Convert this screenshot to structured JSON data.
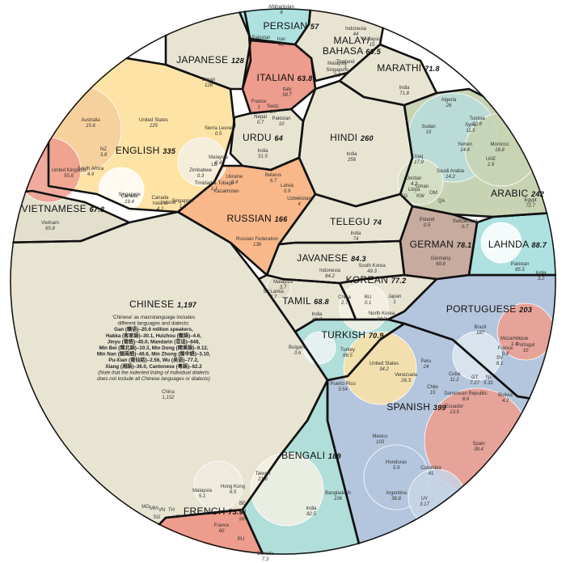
{
  "chart_data": {
    "type": "circle-voronoi-treemap",
    "title": "",
    "unit_note": "",
    "colors": {
      "asia": "#e8e4d2",
      "latin": "#b4c6dd",
      "germanic": "#fde3a5",
      "romance_red": "#ee9c8d",
      "slavic": "#f8b88a",
      "semitic_arabic": "#c8d3b3",
      "arabic_alt": "#b9dcdc",
      "iranian": "#ade2e0",
      "germanic_brown": "#c7ab9e",
      "turkic": "#b0ded9",
      "vietnamese": "#e2e0cd",
      "outline": "#111111"
    },
    "languages": [
      {
        "name": "CHINESE",
        "value": "1,197",
        "color": "asia"
      },
      {
        "name": "SPANISH",
        "value": "399",
        "color": "latin"
      },
      {
        "name": "ENGLISH",
        "value": "335",
        "color": "germanic"
      },
      {
        "name": "HINDI",
        "value": "260",
        "color": "asia"
      },
      {
        "name": "ARABIC",
        "value": "242",
        "color": "semitic_arabic"
      },
      {
        "name": "PORTUGUESE",
        "value": "203",
        "color": "latin"
      },
      {
        "name": "BENGALI",
        "value": "189",
        "color": "turkic"
      },
      {
        "name": "RUSSIAN",
        "value": "166",
        "color": "slavic"
      },
      {
        "name": "JAPANESE",
        "value": "128",
        "color": "asia"
      },
      {
        "name": "LAHNDA",
        "value": "88.7",
        "color": "iranian"
      },
      {
        "name": "JAVANESE",
        "value": "84.3",
        "color": "asia"
      },
      {
        "name": "GERMAN",
        "value": "78.1",
        "color": "germanic_brown"
      },
      {
        "name": "KOREAN",
        "value": "77.2",
        "color": "asia"
      },
      {
        "name": "FRENCH",
        "value": "75.9",
        "color": "romance_red"
      },
      {
        "name": "TELEGU",
        "value": "74",
        "color": "asia"
      },
      {
        "name": "MARATHI",
        "value": "71.8",
        "color": "asia"
      },
      {
        "name": "TURKISH",
        "value": "70.9",
        "color": "turkic"
      },
      {
        "name": "TAMIL",
        "value": "68.8",
        "color": "asia"
      },
      {
        "name": "VIETNAMESE",
        "value": "67.8",
        "color": "vietnamese"
      },
      {
        "name": "URDU",
        "value": "64",
        "color": "asia"
      },
      {
        "name": "ITALIAN",
        "value": "63.8",
        "color": "romance_red"
      },
      {
        "name": "MALAY/ BAHASA",
        "value": "60.5",
        "color": "asia"
      },
      {
        "name": "PERSIAN",
        "value": "57",
        "color": "iranian"
      }
    ],
    "countries": [
      {
        "label": "Afghanistan",
        "value": "8"
      },
      {
        "label": "Iran",
        "value": "46"
      },
      {
        "label": "Pakistan",
        "value": ""
      },
      {
        "label": "Indonesia",
        "value": "44"
      },
      {
        "label": "Malaysia",
        "value": "15"
      },
      {
        "label": "Thailand",
        "value": "1"
      },
      {
        "label": "Singapore",
        "value": "0.5"
      },
      {
        "label": "Japan",
        "value": "128"
      },
      {
        "label": "Italy",
        "value": "58.7"
      },
      {
        "label": "France",
        "value": "1"
      },
      {
        "label": "Switz.",
        "value": "0.7"
      },
      {
        "label": "India",
        "value": "71.8"
      },
      {
        "label": "Algeria",
        "value": "26"
      },
      {
        "label": "Tunisia",
        "value": "10.8"
      },
      {
        "label": "Syria",
        "value": "11.5"
      },
      {
        "label": "Sudan",
        "value": "15"
      },
      {
        "label": "Yemen",
        "value": "14.4"
      },
      {
        "label": "Morocco",
        "value": "18.8"
      },
      {
        "label": "Iraq",
        "value": "17.9"
      },
      {
        "label": "Saudi Arabia",
        "value": "14.2"
      },
      {
        "label": "UAE",
        "value": "2.9"
      },
      {
        "label": "Jordan",
        "value": "4.2"
      },
      {
        "label": "Egypt",
        "value": "72.7"
      },
      {
        "label": "Australia",
        "value": "15.6"
      },
      {
        "label": "NZ",
        "value": "3.8"
      },
      {
        "label": "United States",
        "value": "225"
      },
      {
        "label": "Sierra Leone",
        "value": "0.5"
      },
      {
        "label": "United Kingdom",
        "value": "55.6"
      },
      {
        "label": "South Africa",
        "value": "4.9"
      },
      {
        "label": "Canada",
        "value": "19.4"
      },
      {
        "label": "Ireland",
        "value": "4.2"
      },
      {
        "label": "Zimbabwe",
        "value": "0.3"
      },
      {
        "label": "Trinidad & Tobago",
        "value": "1.1"
      },
      {
        "label": "Singapore",
        "value": "1.1"
      },
      {
        "label": "Malaysia",
        "value": "0.4"
      },
      {
        "label": "Nepal",
        "value": "0.7"
      },
      {
        "label": "Pakistan",
        "value": "10"
      },
      {
        "label": "India",
        "value": "51.5"
      },
      {
        "label": "India",
        "value": "258"
      },
      {
        "label": "Ukraine",
        "value": "8.4"
      },
      {
        "label": "Belarus",
        "value": "6.7"
      },
      {
        "label": "Kazakhstan",
        "value": ""
      },
      {
        "label": "Latvia",
        "value": "0.9"
      },
      {
        "label": "Uzbekistan",
        "value": "4"
      },
      {
        "label": "Russian Federation",
        "value": "138"
      },
      {
        "label": "Vietnam",
        "value": "65.8"
      },
      {
        "label": "India",
        "value": "74"
      },
      {
        "label": "Poland",
        "value": "0.5"
      },
      {
        "label": "Switzerland",
        "value": "0.7"
      },
      {
        "label": "Germany",
        "value": "69.8"
      },
      {
        "label": "Pakistan",
        "value": "85.5"
      },
      {
        "label": "India",
        "value": "3.2"
      },
      {
        "label": "Indonesia",
        "value": "84.2"
      },
      {
        "label": "South Korea",
        "value": "49.3"
      },
      {
        "label": "China",
        "value": "2.7"
      },
      {
        "label": "RU",
        "value": "0.1"
      },
      {
        "label": "Japan",
        "value": "1"
      },
      {
        "label": "North Korea",
        "value": "24.2"
      },
      {
        "label": "Malaysia",
        "value": "3.7"
      },
      {
        "label": "Sri Lanka",
        "value": "3.7"
      },
      {
        "label": "India",
        "value": "60.7"
      },
      {
        "label": "Brazil",
        "value": "187"
      },
      {
        "label": "Mozambique",
        "value": "1.4"
      },
      {
        "label": "France",
        "value": "0.8"
      },
      {
        "label": "Portugal",
        "value": "10"
      },
      {
        "label": "Bulgaria",
        "value": "0.6"
      },
      {
        "label": "Turkey",
        "value": "66.5"
      },
      {
        "label": "United States",
        "value": "34.2"
      },
      {
        "label": "Puerto Rico",
        "value": "3.54"
      },
      {
        "label": "Peru",
        "value": "24"
      },
      {
        "label": "Venezuela",
        "value": "26.3"
      },
      {
        "label": "Chile",
        "value": "15"
      },
      {
        "label": "Cuba",
        "value": "11.2"
      },
      {
        "label": "GT",
        "value": "7.27"
      },
      {
        "label": "SV",
        "value": "6.1"
      },
      {
        "label": "Dominican Republic",
        "value": "8.6"
      },
      {
        "label": "NI",
        "value": "5.31"
      },
      {
        "label": "Ecuador",
        "value": "13.5"
      },
      {
        "label": "Bolivia",
        "value": "4.2"
      },
      {
        "label": "Mexico",
        "value": "103"
      },
      {
        "label": "Spain",
        "value": "38.4"
      },
      {
        "label": "Honduras",
        "value": "5.9"
      },
      {
        "label": "Colombia",
        "value": "41"
      },
      {
        "label": "Argentina",
        "value": "38.8"
      },
      {
        "label": "UY",
        "value": "3.17"
      },
      {
        "label": "Bangladesh",
        "value": "106"
      },
      {
        "label": "India",
        "value": "82.5"
      },
      {
        "label": "Taiwan",
        "value": "21.8"
      },
      {
        "label": "Hong Kong",
        "value": "6.5"
      },
      {
        "label": "Malaysia",
        "value": "5.1"
      },
      {
        "label": "France",
        "value": "60"
      },
      {
        "label": "Canada",
        "value": "7.3"
      },
      {
        "label": "China",
        "value": "1,152"
      }
    ],
    "chinese_note": [
      {
        "text": "'Chinese' as macrolanguage includes",
        "style": "plain"
      },
      {
        "text": "different languages and dialects:",
        "style": "plain"
      },
      {
        "text": "Gan (赣语)–20.6 million speakers,",
        "style": "bold"
      },
      {
        "text": "Hakka (客家語)–30.1, Huizhou (徽語)–4.6,",
        "style": "bold"
      },
      {
        "text": "Jinyu (晉語)–45.0, Mandarin (官话)–848,",
        "style": "bold"
      },
      {
        "text": "Min Bei (閩北語)–10.3, Min Dong (閩東語)–9.12,",
        "style": "bold"
      },
      {
        "text": "Min Nan (閩南語)–46.6, Min Zhong (閩中語)–3.10,",
        "style": "bold"
      },
      {
        "text": "Pu-Xian (莆仙話)–2.56, Wu (吴语)–77.2,",
        "style": "bold"
      },
      {
        "text": "Xiang (湘語)–36.0, Cantonese (粵語)–62.2",
        "style": "bold"
      },
      {
        "text": "(Note that the indented listing of individual dialects",
        "style": "italic"
      },
      {
        "text": "does not include all Chinese languages or dialects)",
        "style": "italic"
      }
    ],
    "small_labels": [
      "MO",
      "MM",
      "VN",
      "TH",
      "SG",
      "BE",
      "CH",
      "PF",
      "HT",
      "RU",
      "EG",
      "KW",
      "OM",
      "QA",
      "Libya",
      "Oman",
      "LB",
      "Malaysia",
      "Singapore",
      "Canada",
      "Ireland"
    ]
  }
}
